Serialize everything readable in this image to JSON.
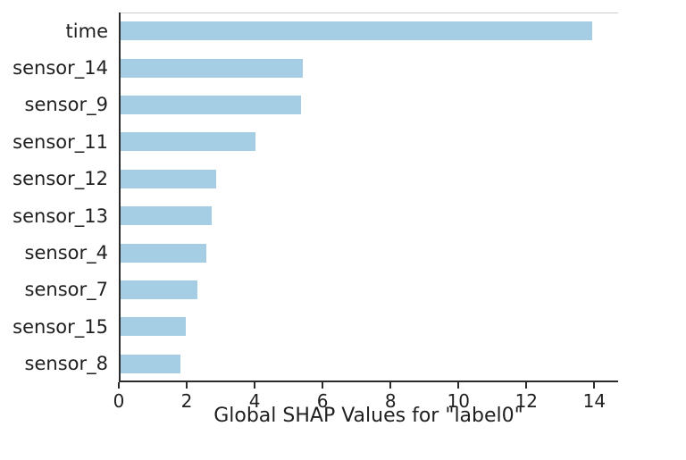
{
  "chart_data": {
    "type": "bar",
    "orientation": "horizontal",
    "title": "",
    "xlabel": "Global SHAP Values for \"label0\"",
    "ylabel": "",
    "categories": [
      "time",
      "sensor_14",
      "sensor_9",
      "sensor_11",
      "sensor_12",
      "sensor_13",
      "sensor_4",
      "sensor_7",
      "sensor_15",
      "sensor_8"
    ],
    "values": [
      13.9,
      5.4,
      5.35,
      4.0,
      2.85,
      2.7,
      2.55,
      2.3,
      1.95,
      1.8
    ],
    "xticks": [
      0,
      2,
      4,
      6,
      8,
      10,
      12,
      14
    ],
    "xlim": [
      0,
      14.7
    ],
    "grid": false,
    "legend": null,
    "colors": {
      "bar": "#a5cde3",
      "axis": "#2b2b2b",
      "top_spine": "#cccccc",
      "text": "#1f1f1f",
      "background": "#ffffff"
    }
  }
}
